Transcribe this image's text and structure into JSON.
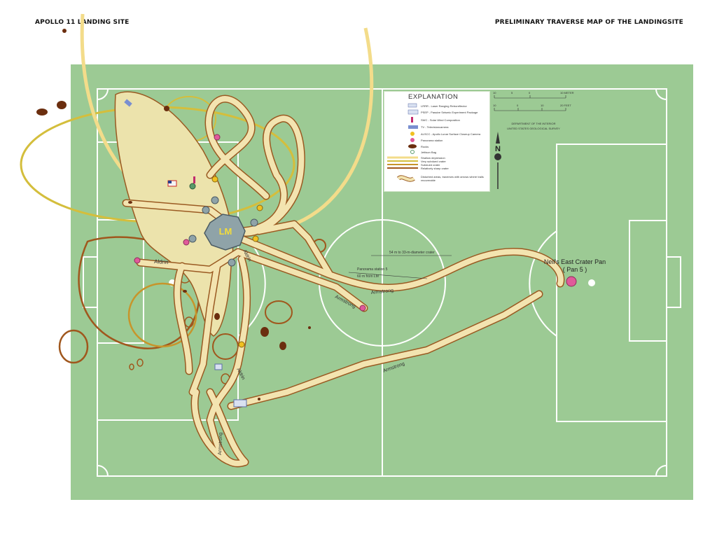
{
  "header": {
    "left_title": "APOLLO 11 LANDING SITE",
    "right_title": "PRELIMINARY TRAVERSE MAP OF THE LANDINGSITE"
  },
  "colors": {
    "field": "#9cca94",
    "field_lines": "#ffffff",
    "trail_fill": "#f3e4b0",
    "trail_edge": "#9a5a22",
    "rock": "#6b2e0f",
    "camera_marker": "#f0c020",
    "panorama_marker": "#e05a9a",
    "lm_fill": "#8fa3a8"
  },
  "legend": {
    "title": "EXPLANATION",
    "items": [
      {
        "icon": "lrrr-icon",
        "text": "LRRR - Laser Ranging Retroreflector"
      },
      {
        "icon": "psep-icon",
        "text": "PSEP - Passive Seismic Experiment Package"
      },
      {
        "icon": "swc-icon",
        "text": "SWC - Solar Wind Composition"
      },
      {
        "icon": "tv-camera-icon",
        "text": "TV - Televisioncamera"
      },
      {
        "icon": "alscc-icon",
        "text": "ALSCC - Apollo Lunar Surface Closeup Camera"
      },
      {
        "icon": "panorama-station-icon",
        "text": "Panorama station"
      },
      {
        "icon": "rock-icon",
        "text": "Rocks"
      },
      {
        "icon": "jettison-bag-icon",
        "text": "Jettison Bag"
      },
      {
        "icon": "shallow-depression-icon",
        "text": "Shallow depression"
      },
      {
        "icon": "very-subdued-crater-icon",
        "text": "Very subdued crater"
      },
      {
        "icon": "subdued-crater-icon",
        "text": "Subdued crater"
      },
      {
        "icon": "sharp-crater-icon",
        "text": "Relatively sharp crater"
      },
      {
        "icon": "disturbed-area-icon",
        "text": "Disturbed areas, traverses with arrows where trails recoverable"
      }
    ]
  },
  "scale": {
    "meter_ticks": [
      "10",
      "5",
      "0",
      "10 METER"
    ],
    "feet_ticks": [
      "10",
      "0",
      "10",
      "20 FEET"
    ],
    "credit_line1": "DEPARTMENT OF THE INTERIOR",
    "credit_line2": "UNITED STATES GEOLOGICAL SURVEY",
    "north_label": "N"
  },
  "map_labels": {
    "lm": "LM",
    "aldrin_left": "Aldrin",
    "aldrin_right": "Aldrin",
    "aldrin_bottom": "Aldrin",
    "armstrong_east": "Armstrong",
    "armstrong_pan5": "Armstrong",
    "armstrong_diag": "Armstrong",
    "armstrong_south": "Armstrong",
    "crater_note": "54 m to 33-m-diameter crater",
    "pan_station_line1": "Panorama station 5",
    "pan_station_line2": "60 m from LM",
    "neil_crater_line1": "Neil's East Crater Pan",
    "neil_crater_line2": "( Pan 5 )"
  }
}
